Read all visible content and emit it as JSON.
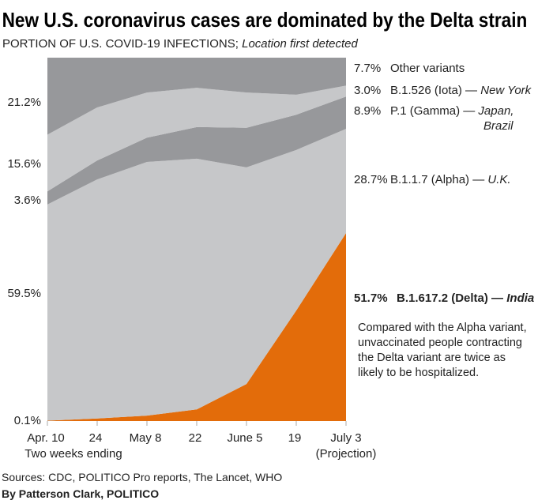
{
  "title": "New U.S. coronavirus cases are dominated by the Delta strain",
  "subtitle": "PORTION OF U.S. COVID-19 INFECTIONS;",
  "subtitle_italic": "Location first detected",
  "chart_data": {
    "type": "area",
    "stacked": true,
    "normalized_percent": true,
    "ylim": [
      0,
      100
    ],
    "grid": false,
    "categories": [
      "Apr. 10",
      "24",
      "May 8",
      "22",
      "June 5",
      "19",
      "July 3"
    ],
    "xlabel": "Two weeks ending",
    "x_note": "(Projection)",
    "series": [
      {
        "name": "B.1.617.2 (Delta)",
        "origin": "India",
        "color": "#e36c0a",
        "values": [
          0.1,
          0.7,
          1.5,
          3.2,
          10.2,
          30.4,
          51.7
        ]
      },
      {
        "name": "B.1.1.7 (Alpha)",
        "origin": "U.K.",
        "color": "#c6c7c9",
        "values": [
          59.5,
          65.8,
          69.8,
          69.0,
          59.6,
          44.2,
          28.7
        ]
      },
      {
        "name": "P.1 (Gamma)",
        "origin": "Japan, Brazil",
        "color": "#97989b",
        "values": [
          3.6,
          5.2,
          6.7,
          8.7,
          10.9,
          9.7,
          8.9
        ]
      },
      {
        "name": "B.1.526 (Iota)",
        "origin": "New York",
        "color": "#c6c7c9",
        "values": [
          15.6,
          14.6,
          12.4,
          10.8,
          9.7,
          5.5,
          3.0
        ]
      },
      {
        "name": "Other variants",
        "color": "#97989b",
        "values": [
          21.2,
          13.7,
          9.6,
          8.3,
          9.6,
          10.2,
          7.7
        ]
      }
    ],
    "start_labels": [
      "0.1%",
      "59.5%",
      "3.6%",
      "15.6%",
      "21.2%"
    ],
    "end_labels": {
      "other": {
        "pct": "7.7%",
        "name": "Other variants"
      },
      "iota": {
        "pct": "3.0%",
        "name": "B.1.526 (Iota) —",
        "origin": "New York"
      },
      "gamma": {
        "pct": "8.9%",
        "name": "P.1 (Gamma) —",
        "origin1": "Japan,",
        "origin2": "Brazil"
      },
      "alpha": {
        "pct": "28.7%",
        "name": "B.1.1.7 (Alpha) —",
        "origin": "U.K."
      },
      "delta": {
        "pct": "51.7%",
        "name": "B.1.617.2 (Delta) —",
        "origin": "India"
      }
    },
    "annotation": [
      "Compared with the Alpha variant,",
      "unvaccinated people contracting",
      "the Delta variant are twice as",
      "likely to be hospitalized."
    ]
  },
  "sources": "Sources: CDC, POLITICO Pro reports, The Lancet, WHO",
  "byline": "By Patterson Clark, POLITICO"
}
